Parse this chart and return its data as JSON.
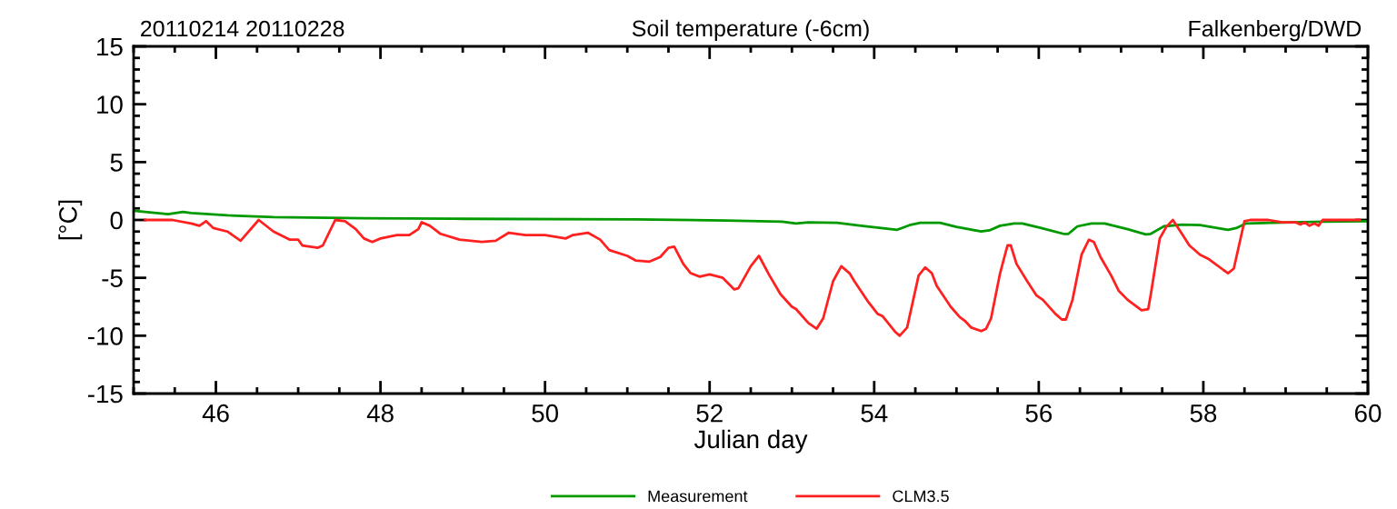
{
  "chart_data": {
    "type": "line",
    "title": "Soil temperature (-6cm)",
    "annotations": [
      "20110214 20110228",
      "Falkenberg/DWD"
    ],
    "xlabel": "Julian day",
    "ylabel": "[°C]",
    "xlim": [
      45,
      60
    ],
    "ylim": [
      -15,
      15
    ],
    "xticks": [
      46,
      48,
      50,
      52,
      54,
      56,
      58,
      60
    ],
    "yticks": [
      -15,
      -10,
      -5,
      0,
      5,
      10,
      15
    ],
    "grid": false,
    "legend": "bottom",
    "line_style": "solid",
    "marker": "none",
    "series": [
      {
        "name": "Measurement",
        "color": "#009900",
        "x": [
          45,
          45.42,
          45.6,
          45.7,
          46.14,
          46.7,
          47.8,
          48.9,
          51.1,
          52.2,
          52.88,
          53.05,
          53.2,
          53.55,
          53.84,
          54.28,
          54.43,
          54.56,
          54.8,
          55.0,
          55.3,
          55.4,
          55.53,
          55.7,
          55.8,
          56.03,
          56.3,
          56.36,
          56.47,
          56.64,
          56.8,
          57.08,
          57.3,
          57.36,
          57.52,
          57.74,
          57.96,
          58.3,
          58.4,
          58.52,
          58.83,
          59.46,
          60
        ],
        "values": [
          0.8,
          0.5,
          0.7,
          0.6,
          0.4,
          0.25,
          0.15,
          0.1,
          0.05,
          -0.05,
          -0.15,
          -0.3,
          -0.2,
          -0.25,
          -0.5,
          -0.85,
          -0.45,
          -0.25,
          -0.25,
          -0.6,
          -1.0,
          -0.9,
          -0.5,
          -0.3,
          -0.3,
          -0.7,
          -1.2,
          -1.2,
          -0.55,
          -0.3,
          -0.3,
          -0.8,
          -1.25,
          -1.2,
          -0.55,
          -0.4,
          -0.45,
          -0.85,
          -0.7,
          -0.3,
          -0.25,
          -0.15,
          -0.1
        ]
      },
      {
        "name": "CLM3.5",
        "color": "#ff2020",
        "x": [
          45.14,
          45.47,
          45.7,
          45.8,
          45.88,
          45.97,
          46.14,
          46.3,
          46.52,
          46.7,
          46.9,
          47.0,
          47.05,
          47.24,
          47.3,
          47.45,
          47.57,
          47.7,
          47.8,
          47.9,
          48.0,
          48.2,
          48.35,
          48.46,
          48.5,
          48.6,
          48.73,
          48.96,
          49.23,
          49.4,
          49.56,
          49.76,
          50.0,
          50.25,
          50.34,
          50.52,
          50.67,
          50.78,
          51.0,
          51.1,
          51.27,
          51.4,
          51.5,
          51.57,
          51.68,
          51.77,
          51.88,
          52.0,
          52.16,
          52.3,
          52.35,
          52.5,
          52.6,
          52.72,
          52.86,
          53.0,
          53.05,
          53.2,
          53.3,
          53.38,
          53.5,
          53.6,
          53.7,
          53.76,
          53.93,
          54.04,
          54.1,
          54.26,
          54.31,
          54.4,
          54.54,
          54.62,
          54.7,
          54.76,
          54.93,
          55.04,
          55.1,
          55.18,
          55.3,
          55.36,
          55.42,
          55.53,
          55.62,
          55.66,
          55.73,
          55.86,
          55.97,
          56.05,
          56.2,
          56.28,
          56.33,
          56.41,
          56.52,
          56.61,
          56.67,
          56.75,
          56.88,
          56.97,
          57.08,
          57.25,
          57.33,
          57.36,
          57.47,
          57.55,
          57.63,
          57.74,
          57.83,
          57.96,
          58.07,
          58.24,
          58.3,
          58.37,
          58.5,
          58.57,
          58.79,
          58.96,
          59.12,
          59.18,
          59.23,
          59.29,
          59.35,
          59.4,
          59.45,
          59.9
        ],
        "values": [
          0,
          0,
          -0.3,
          -0.5,
          -0.1,
          -0.7,
          -1.0,
          -1.8,
          0,
          -1.0,
          -1.7,
          -1.7,
          -2.2,
          -2.4,
          -2.2,
          0,
          -0.1,
          -0.8,
          -1.6,
          -1.9,
          -1.6,
          -1.3,
          -1.3,
          -0.8,
          -0.2,
          -0.5,
          -1.2,
          -1.7,
          -1.9,
          -1.8,
          -1.1,
          -1.3,
          -1.3,
          -1.6,
          -1.3,
          -1.1,
          -1.7,
          -2.6,
          -3.1,
          -3.5,
          -3.6,
          -3.2,
          -2.4,
          -2.3,
          -3.8,
          -4.6,
          -4.9,
          -4.7,
          -5.0,
          -6.0,
          -5.9,
          -4.0,
          -3.1,
          -4.7,
          -6.4,
          -7.5,
          -7.7,
          -8.9,
          -9.4,
          -8.5,
          -5.3,
          -4.0,
          -4.6,
          -5.3,
          -7.1,
          -8.1,
          -8.3,
          -9.7,
          -10.0,
          -9.3,
          -4.8,
          -4.1,
          -4.6,
          -5.7,
          -7.5,
          -8.4,
          -8.7,
          -9.3,
          -9.6,
          -9.4,
          -8.5,
          -4.6,
          -2.2,
          -2.2,
          -3.8,
          -5.3,
          -6.5,
          -6.9,
          -8.1,
          -8.6,
          -8.6,
          -6.9,
          -3.0,
          -1.7,
          -1.9,
          -3.2,
          -4.8,
          -6.1,
          -6.9,
          -7.8,
          -7.7,
          -6.5,
          -1.6,
          -0.6,
          0,
          -1.2,
          -2.2,
          -3.0,
          -3.4,
          -4.3,
          -4.6,
          -4.2,
          -0.1,
          0,
          0,
          -0.2,
          -0.2,
          -0.4,
          -0.2,
          -0.5,
          -0.3,
          -0.5,
          0,
          0
        ]
      }
    ]
  }
}
